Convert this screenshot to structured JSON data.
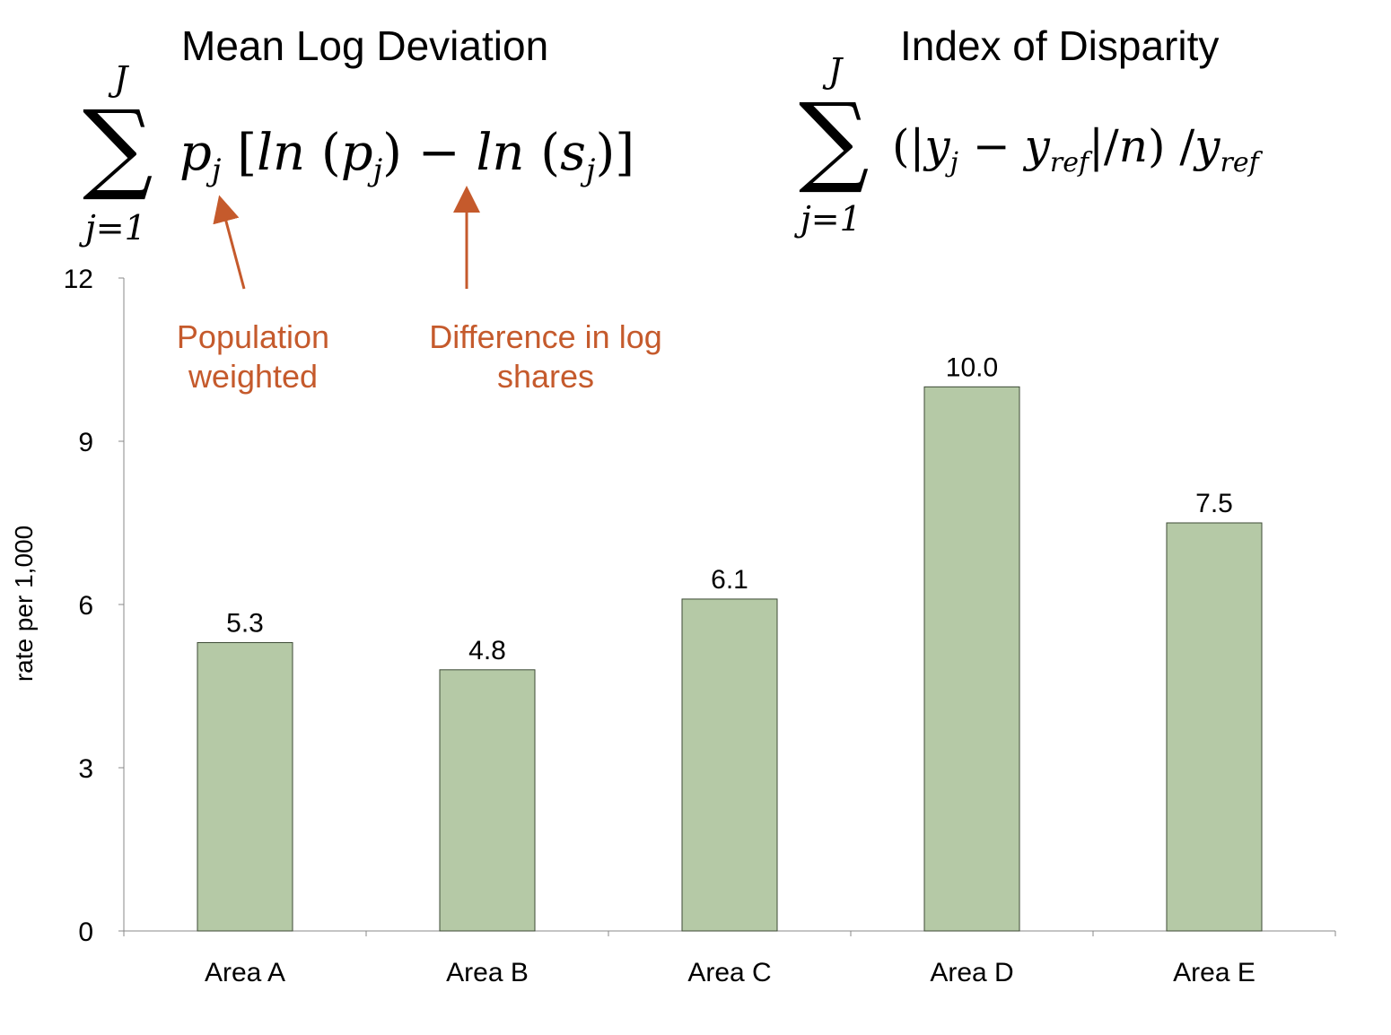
{
  "formulas": {
    "mld": {
      "title": "Mean Log Deviation",
      "upper": "J",
      "lower": "j=1",
      "expression": "p_j [ln(p_j) − ln(s_j)]"
    },
    "iod": {
      "title": "Index of Disparity",
      "upper": "J",
      "lower": "j=1",
      "expression": "(|y_j − y_ref|/n) / y_ref"
    }
  },
  "annotations": {
    "population": {
      "line1": "Population",
      "line2": "weighted"
    },
    "difference": {
      "line1": "Difference in log",
      "line2": "shares"
    },
    "color": "#c55a2c"
  },
  "chart_data": {
    "type": "bar",
    "categories": [
      "Area A",
      "Area B",
      "Area C",
      "Area D",
      "Area E"
    ],
    "values": [
      5.3,
      4.8,
      6.1,
      10.0,
      7.5
    ],
    "value_labels": [
      "5.3",
      "4.8",
      "6.1",
      "10.0",
      "7.5"
    ],
    "ylabel": "rate per 1,000",
    "ylim": [
      0,
      12
    ],
    "yticks": [
      0,
      3,
      6,
      9,
      12
    ],
    "bar_color": "#b5c9a6",
    "grid": false
  }
}
